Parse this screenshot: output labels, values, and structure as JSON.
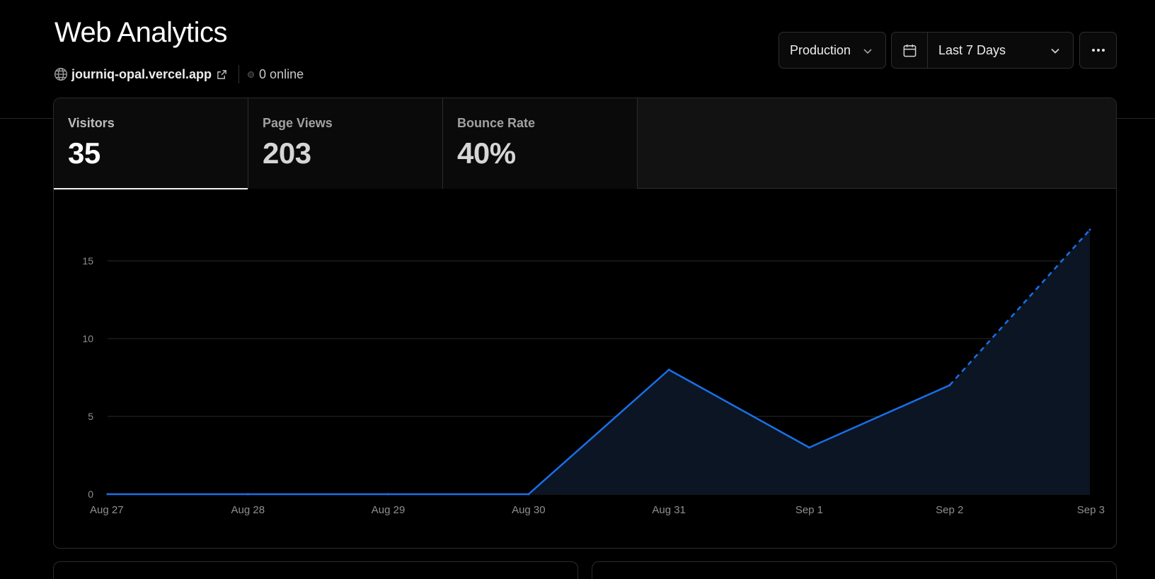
{
  "header": {
    "title": "Web Analytics",
    "site": {
      "host": "journiq-opal.vercel.app",
      "icon": "globe-icon",
      "link_icon": "external-link-icon"
    },
    "online": "0 online"
  },
  "controls": {
    "environment": "Production",
    "date_range": "Last 7 Days",
    "calendar_icon": "calendar-icon",
    "more_icon": "more-horizontal-icon"
  },
  "stats": [
    {
      "label": "Visitors",
      "value": "35"
    },
    {
      "label": "Page Views",
      "value": "203"
    },
    {
      "label": "Bounce Rate",
      "value": "40%"
    }
  ],
  "colors": {
    "line": "#1a6fe8",
    "area": "#0b1523",
    "grid": "#2a2a2a",
    "tick": "#8f8f8f"
  },
  "chart_data": {
    "type": "area",
    "x": [
      "Aug 27",
      "Aug 28",
      "Aug 29",
      "Aug 30",
      "Aug 31",
      "Sep 1",
      "Sep 2",
      "Sep 3"
    ],
    "series": [
      {
        "values": [
          0,
          0,
          0,
          0,
          8,
          3,
          7,
          17
        ],
        "dashed_last_segment": true
      }
    ],
    "y_ticks": [
      0,
      5,
      10,
      15
    ],
    "ylim": [
      0,
      17
    ],
    "grid": true
  }
}
